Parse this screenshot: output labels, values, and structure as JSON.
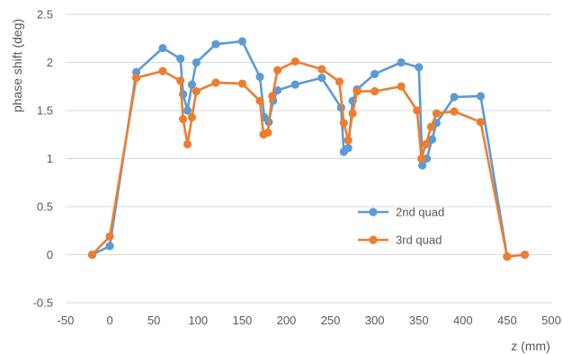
{
  "chart_data": {
    "type": "line",
    "xlabel": "z (mm)",
    "ylabel": "phase shift (deg)",
    "xlim": [
      -50,
      500
    ],
    "ylim": [
      -0.5,
      2.5
    ],
    "x_ticks": [
      -50,
      0,
      50,
      100,
      150,
      200,
      250,
      300,
      350,
      400,
      450,
      500
    ],
    "y_ticks": [
      -0.5,
      0,
      0.5,
      1,
      1.5,
      2,
      2.5
    ],
    "y_tick_labels": [
      "-0.5",
      "0",
      "0.5",
      "1",
      "1.5",
      "2",
      "2.5"
    ],
    "grid": "horizontal",
    "legend": "inside-right",
    "series": [
      {
        "name": "2nd quad",
        "color": "#5B9BD5",
        "points": [
          [
            -20,
            0.0
          ],
          [
            0,
            0.09
          ],
          [
            30,
            1.9
          ],
          [
            60,
            2.15
          ],
          [
            80,
            2.04
          ],
          [
            83,
            1.67
          ],
          [
            88,
            1.5
          ],
          [
            93,
            1.77
          ],
          [
            98,
            2.0
          ],
          [
            120,
            2.19
          ],
          [
            150,
            2.22
          ],
          [
            170,
            1.85
          ],
          [
            175,
            1.43
          ],
          [
            180,
            1.38
          ],
          [
            185,
            1.6
          ],
          [
            190,
            1.71
          ],
          [
            210,
            1.77
          ],
          [
            240,
            1.84
          ],
          [
            262,
            1.53
          ],
          [
            265,
            1.07
          ],
          [
            270,
            1.11
          ],
          [
            275,
            1.6
          ],
          [
            280,
            1.72
          ],
          [
            300,
            1.88
          ],
          [
            330,
            2.0
          ],
          [
            350,
            1.95
          ],
          [
            354,
            0.93
          ],
          [
            359,
            1.0
          ],
          [
            365,
            1.2
          ],
          [
            370,
            1.37
          ],
          [
            390,
            1.64
          ],
          [
            420,
            1.65
          ],
          [
            450,
            -0.02
          ],
          [
            470,
            0.0
          ]
        ]
      },
      {
        "name": "3rd quad",
        "color": "#ED7D31",
        "points": [
          [
            -20,
            0.0
          ],
          [
            0,
            0.19
          ],
          [
            30,
            1.84
          ],
          [
            60,
            1.91
          ],
          [
            80,
            1.81
          ],
          [
            83,
            1.41
          ],
          [
            88,
            1.15
          ],
          [
            93,
            1.43
          ],
          [
            98,
            1.7
          ],
          [
            120,
            1.79
          ],
          [
            150,
            1.78
          ],
          [
            170,
            1.6
          ],
          [
            174,
            1.25
          ],
          [
            179,
            1.27
          ],
          [
            184,
            1.65
          ],
          [
            190,
            1.92
          ],
          [
            210,
            2.01
          ],
          [
            240,
            1.93
          ],
          [
            260,
            1.8
          ],
          [
            265,
            1.37
          ],
          [
            270,
            1.19
          ],
          [
            275,
            1.47
          ],
          [
            280,
            1.7
          ],
          [
            300,
            1.7
          ],
          [
            330,
            1.75
          ],
          [
            348,
            1.5
          ],
          [
            353,
            1.0
          ],
          [
            358,
            1.15
          ],
          [
            364,
            1.33
          ],
          [
            370,
            1.47
          ],
          [
            390,
            1.49
          ],
          [
            420,
            1.38
          ],
          [
            450,
            -0.02
          ],
          [
            470,
            0.0
          ]
        ]
      }
    ]
  }
}
